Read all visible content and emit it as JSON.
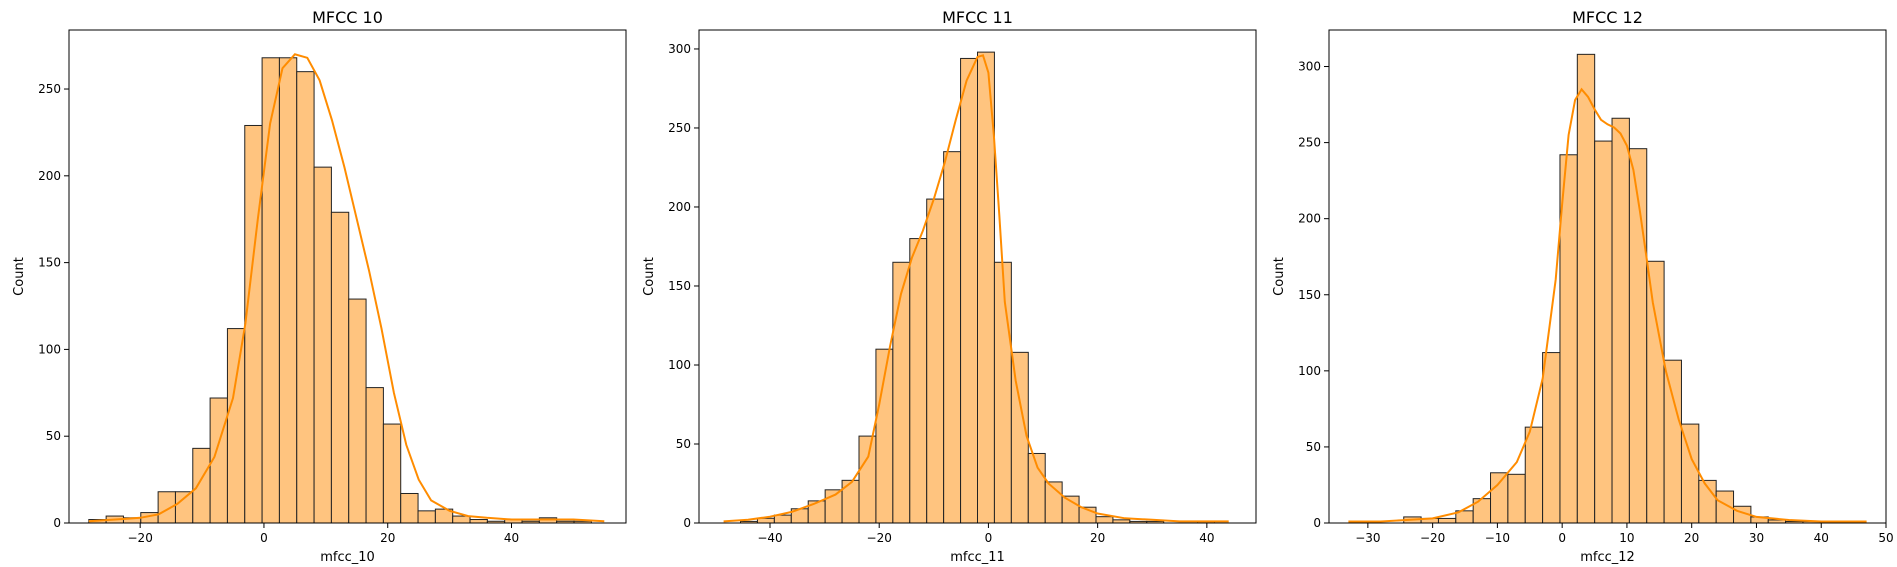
{
  "chart_data": [
    {
      "type": "bar",
      "title": "MFCC 10",
      "xlabel": "mfcc_10",
      "ylabel": "Count",
      "xlim": [
        -31.5,
        58.5
      ],
      "ylim": [
        0,
        284
      ],
      "xticks": [
        -20,
        0,
        20,
        40
      ],
      "yticks": [
        0,
        50,
        100,
        150,
        200,
        250
      ],
      "bin_start": -28.3,
      "bin_width": 2.8,
      "values": [
        2,
        4,
        3,
        6,
        18,
        18,
        43,
        72,
        112,
        229,
        268,
        268,
        260,
        205,
        179,
        129,
        78,
        57,
        17,
        7,
        8,
        4,
        2,
        1,
        2,
        1,
        3,
        1,
        1,
        0
      ],
      "kde": [
        [
          -28.3,
          1
        ],
        [
          -24,
          2
        ],
        [
          -20,
          3
        ],
        [
          -17,
          5
        ],
        [
          -14,
          11
        ],
        [
          -11,
          20
        ],
        [
          -8,
          38
        ],
        [
          -5,
          72
        ],
        [
          -3,
          115
        ],
        [
          -1,
          175
        ],
        [
          1,
          230
        ],
        [
          3,
          262
        ],
        [
          5,
          270
        ],
        [
          7,
          268
        ],
        [
          9,
          255
        ],
        [
          11,
          232
        ],
        [
          13,
          205
        ],
        [
          15,
          175
        ],
        [
          17,
          145
        ],
        [
          19,
          112
        ],
        [
          21,
          75
        ],
        [
          23,
          45
        ],
        [
          25,
          25
        ],
        [
          27,
          13
        ],
        [
          30,
          7
        ],
        [
          33,
          4
        ],
        [
          36,
          3
        ],
        [
          40,
          2
        ],
        [
          45,
          2
        ],
        [
          50,
          2
        ],
        [
          55,
          1
        ]
      ]
    },
    {
      "type": "bar",
      "title": "MFCC 11",
      "xlabel": "mfcc_11",
      "ylabel": "Count",
      "xlim": [
        -53,
        49
      ],
      "ylim": [
        0,
        312
      ],
      "xticks": [
        -40,
        -20,
        0,
        20,
        40
      ],
      "yticks": [
        0,
        50,
        100,
        150,
        200,
        250,
        300
      ],
      "bin_start": -48.5,
      "bin_width": 3.1,
      "values": [
        0,
        1,
        3,
        5,
        9,
        14,
        21,
        27,
        55,
        110,
        165,
        180,
        205,
        235,
        294,
        298,
        165,
        108,
        44,
        26,
        17,
        10,
        4,
        2,
        1,
        1,
        0,
        0,
        1,
        0
      ],
      "kde": [
        [
          -48.5,
          1
        ],
        [
          -44,
          2
        ],
        [
          -40,
          4
        ],
        [
          -36,
          7
        ],
        [
          -32,
          12
        ],
        [
          -28,
          18
        ],
        [
          -25,
          26
        ],
        [
          -22,
          42
        ],
        [
          -20,
          75
        ],
        [
          -18,
          112
        ],
        [
          -16,
          145
        ],
        [
          -14,
          168
        ],
        [
          -12,
          185
        ],
        [
          -10,
          205
        ],
        [
          -8,
          228
        ],
        [
          -6,
          255
        ],
        [
          -4,
          280
        ],
        [
          -2,
          295
        ],
        [
          -1,
          296
        ],
        [
          0,
          285
        ],
        [
          1,
          245
        ],
        [
          2,
          195
        ],
        [
          3,
          140
        ],
        [
          5,
          90
        ],
        [
          7,
          55
        ],
        [
          9,
          35
        ],
        [
          11,
          25
        ],
        [
          14,
          16
        ],
        [
          17,
          10
        ],
        [
          20,
          6
        ],
        [
          25,
          3
        ],
        [
          30,
          2
        ],
        [
          35,
          1
        ],
        [
          40,
          1
        ],
        [
          44,
          1
        ]
      ]
    },
    {
      "type": "bar",
      "title": "MFCC 12",
      "xlabel": "mfcc_12",
      "ylabel": "Count",
      "xlim": [
        -36,
        50
      ],
      "ylim": [
        0,
        324
      ],
      "xticks": [
        -30,
        -20,
        -10,
        0,
        10,
        20,
        30,
        40,
        50
      ],
      "yticks": [
        0,
        50,
        100,
        150,
        200,
        250,
        300
      ],
      "bin_start": -32.5,
      "bin_width": 2.68,
      "values": [
        1,
        0,
        0,
        4,
        3,
        3,
        8,
        16,
        33,
        32,
        63,
        112,
        242,
        308,
        251,
        266,
        246,
        172,
        107,
        65,
        28,
        21,
        11,
        4,
        2,
        1,
        1,
        0,
        0,
        0
      ],
      "kde": [
        [
          -33,
          1
        ],
        [
          -28,
          1
        ],
        [
          -24,
          2
        ],
        [
          -20,
          3
        ],
        [
          -16,
          7
        ],
        [
          -13,
          14
        ],
        [
          -10,
          25
        ],
        [
          -7,
          40
        ],
        [
          -5,
          60
        ],
        [
          -3,
          95
        ],
        [
          -1,
          160
        ],
        [
          0,
          210
        ],
        [
          1,
          255
        ],
        [
          2,
          278
        ],
        [
          3,
          285
        ],
        [
          4,
          280
        ],
        [
          5,
          272
        ],
        [
          6,
          265
        ],
        [
          7,
          262
        ],
        [
          8,
          260
        ],
        [
          9,
          256
        ],
        [
          10,
          248
        ],
        [
          11,
          232
        ],
        [
          12,
          205
        ],
        [
          13,
          175
        ],
        [
          14,
          145
        ],
        [
          16,
          100
        ],
        [
          18,
          68
        ],
        [
          20,
          42
        ],
        [
          22,
          26
        ],
        [
          24,
          15
        ],
        [
          27,
          8
        ],
        [
          30,
          4
        ],
        [
          35,
          2
        ],
        [
          40,
          1
        ],
        [
          47,
          1
        ]
      ]
    }
  ]
}
